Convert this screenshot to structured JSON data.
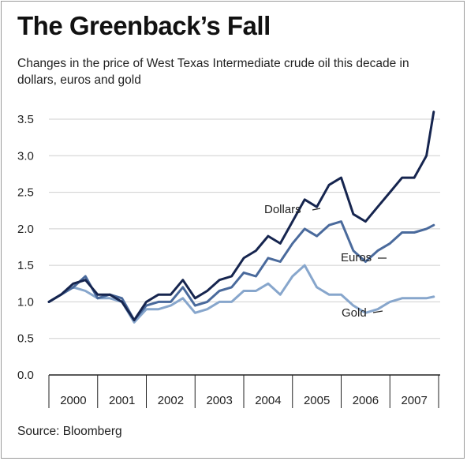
{
  "title": "The Greenback’s Fall",
  "subtitle": "Changes in the price of West Texas Intermediate crude oil this decade in dollars, euros and gold",
  "source": "Source: Bloomberg",
  "colors": {
    "dollars": "#16254f",
    "euros": "#4a6a9c",
    "gold": "#87a6cc",
    "grid": "#cfcfcf",
    "axis": "#222222"
  },
  "chart_data": {
    "type": "line",
    "title": "The Greenback’s Fall",
    "xlabel": "",
    "ylabel": "",
    "ylim": [
      0,
      3.5
    ],
    "grid": true,
    "y_ticks": [
      "0.0",
      "0.5",
      "1.0",
      "1.5",
      "2.0",
      "2.5",
      "3.0",
      "3.5"
    ],
    "y_tick_values": [
      0,
      0.5,
      1.0,
      1.5,
      2.0,
      2.5,
      3.0,
      3.5
    ],
    "x_tick_labels": [
      "2000",
      "2001",
      "2002",
      "2003",
      "2004",
      "2005",
      "2006",
      "2007"
    ],
    "x": [
      2000.0,
      2000.25,
      2000.5,
      2000.75,
      2001.0,
      2001.25,
      2001.5,
      2001.75,
      2002.0,
      2002.25,
      2002.5,
      2002.75,
      2003.0,
      2003.25,
      2003.5,
      2003.75,
      2004.0,
      2004.25,
      2004.5,
      2004.75,
      2005.0,
      2005.25,
      2005.5,
      2005.75,
      2006.0,
      2006.25,
      2006.5,
      2006.75,
      2007.0,
      2007.25,
      2007.5,
      2007.75,
      2007.9
    ],
    "series": [
      {
        "name": "Dollars",
        "color": "#16254f",
        "values": [
          1.0,
          1.1,
          1.25,
          1.3,
          1.1,
          1.1,
          1.0,
          0.75,
          1.0,
          1.1,
          1.1,
          1.3,
          1.05,
          1.15,
          1.3,
          1.35,
          1.6,
          1.7,
          1.9,
          1.8,
          2.1,
          2.4,
          2.3,
          2.6,
          2.7,
          2.2,
          2.1,
          2.3,
          2.5,
          2.7,
          2.7,
          3.0,
          3.6
        ]
      },
      {
        "name": "Euros",
        "color": "#4a6a9c",
        "values": [
          1.0,
          1.1,
          1.2,
          1.35,
          1.05,
          1.1,
          1.05,
          0.75,
          0.95,
          1.0,
          1.0,
          1.2,
          0.95,
          1.0,
          1.15,
          1.2,
          1.4,
          1.35,
          1.6,
          1.55,
          1.8,
          2.0,
          1.9,
          2.05,
          2.1,
          1.7,
          1.55,
          1.7,
          1.8,
          1.95,
          1.95,
          2.0,
          2.05
        ]
      },
      {
        "name": "Gold",
        "color": "#87a6cc",
        "values": [
          1.0,
          1.1,
          1.2,
          1.15,
          1.05,
          1.05,
          1.0,
          0.72,
          0.9,
          0.9,
          0.95,
          1.05,
          0.85,
          0.9,
          1.0,
          1.0,
          1.15,
          1.15,
          1.25,
          1.1,
          1.35,
          1.5,
          1.2,
          1.1,
          1.1,
          0.95,
          0.85,
          0.9,
          1.0,
          1.05,
          1.05,
          1.05,
          1.07
        ]
      }
    ],
    "annotations": [
      {
        "text": "Dollars",
        "series": "Dollars",
        "anchor_x": 2005.0
      },
      {
        "text": "Euros",
        "series": "Euros",
        "anchor_x": 2006.5
      },
      {
        "text": "Gold",
        "series": "Gold",
        "anchor_x": 2006.55
      }
    ]
  }
}
